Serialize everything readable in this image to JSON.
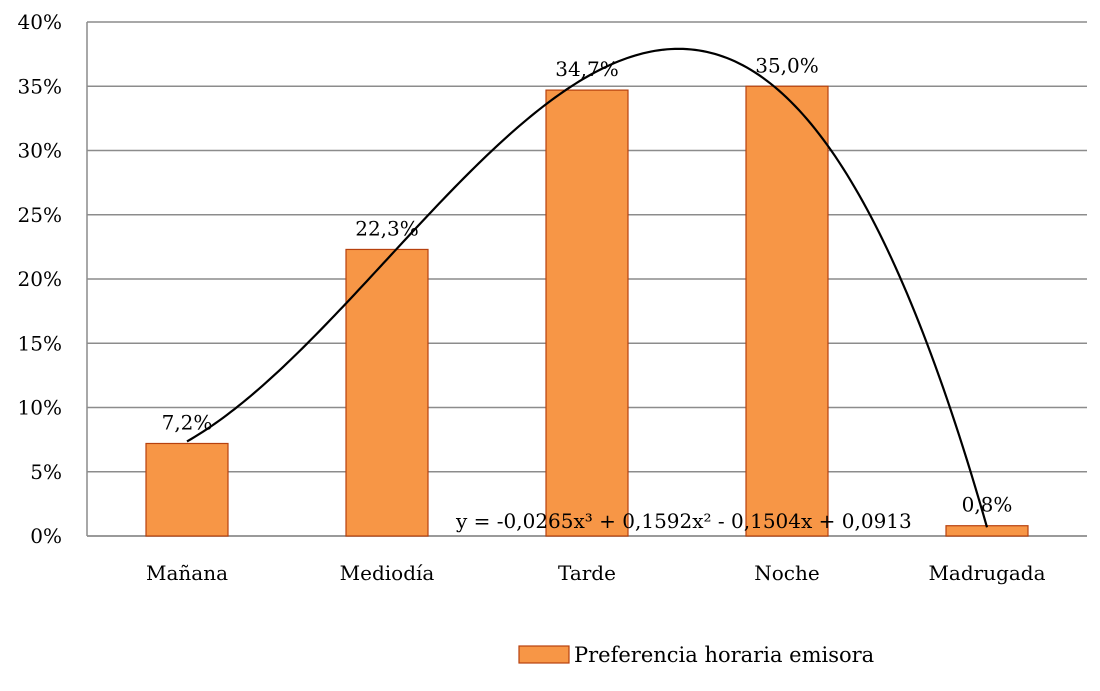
{
  "chart_data": {
    "type": "bar",
    "categories": [
      "Mañana",
      "Mediodía",
      "Tarde",
      "Noche",
      "Madrugada"
    ],
    "series": [
      {
        "name": "Preferencia horaria emisora",
        "values": [
          0.072,
          0.223,
          0.347,
          0.35,
          0.008
        ],
        "data_labels": [
          "7,2%",
          "22,3%",
          "34,7%",
          "35,0%",
          "0,8%"
        ],
        "color": "#f79646",
        "border_color": "#b7410e"
      }
    ],
    "ylim": [
      0,
      0.4
    ],
    "yticks": [
      0,
      0.05,
      0.1,
      0.15,
      0.2,
      0.25,
      0.3,
      0.35,
      0.4
    ],
    "ytick_labels": [
      "0%",
      "5%",
      "10%",
      "15%",
      "20%",
      "25%",
      "30%",
      "35%",
      "40%"
    ],
    "grid": true,
    "legend_position": "bottom-right",
    "trendline": {
      "type": "polynomial-3",
      "coefficients": [
        -0.0265,
        0.1592,
        -0.1504,
        0.0913
      ],
      "equation": "y = -0,0265x³ + 0,1592x² - 0,1504x + 0,0913",
      "color": "#000000"
    }
  }
}
